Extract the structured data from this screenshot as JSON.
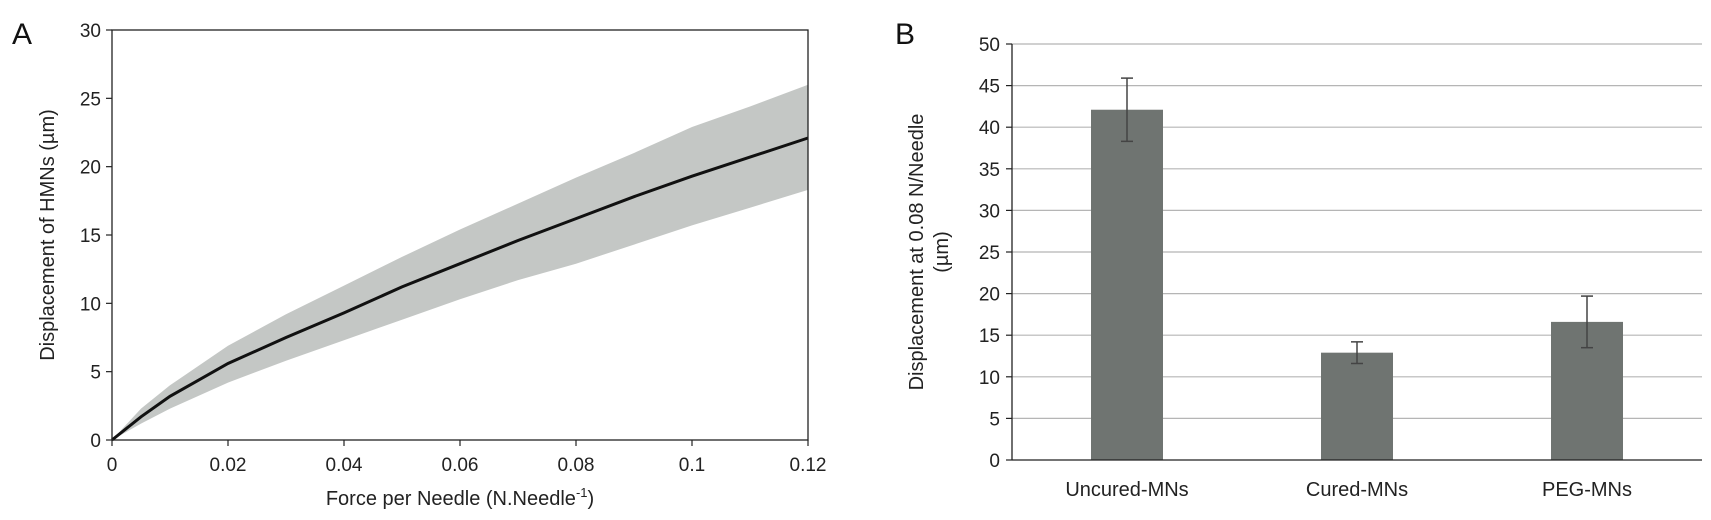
{
  "chart_data": [
    {
      "panel_label": "A",
      "type": "line",
      "xlabel": "Force per Needle (N.Needle",
      "xlabel_sup": "-1",
      "xlabel_suffix": ")",
      "ylabel": "Displacement of HMNs (µm)",
      "xlim": [
        0,
        0.12
      ],
      "ylim": [
        0,
        30
      ],
      "x_ticks": [
        0,
        0.02,
        0.04,
        0.06,
        0.08,
        0.1,
        0.12
      ],
      "x_tick_labels": [
        "0",
        "0.02",
        "0.04",
        "0.06",
        "0.08",
        "0.1",
        "0.12"
      ],
      "y_ticks": [
        0,
        5,
        10,
        15,
        20,
        25,
        30
      ],
      "y_tick_labels": [
        "0",
        "5",
        "10",
        "15",
        "20",
        "25",
        "30"
      ],
      "grid": false,
      "series": [
        {
          "x": [
            0,
            0.005,
            0.01,
            0.02,
            0.03,
            0.04,
            0.05,
            0.06,
            0.07,
            0.08,
            0.09,
            0.1,
            0.11,
            0.12
          ],
          "y": [
            0,
            1.7,
            3.2,
            5.6,
            7.5,
            9.3,
            11.2,
            12.9,
            14.6,
            16.2,
            17.8,
            19.3,
            20.7,
            22.1
          ],
          "lower": [
            0,
            1.2,
            2.3,
            4.2,
            5.8,
            7.3,
            8.8,
            10.3,
            11.7,
            12.9,
            14.3,
            15.7,
            17.0,
            18.3
          ],
          "upper": [
            0,
            2.3,
            4.0,
            6.9,
            9.2,
            11.3,
            13.4,
            15.4,
            17.3,
            19.2,
            21.0,
            22.9,
            24.4,
            26.0
          ],
          "line_color": "#111111",
          "band_color": "#c4c7c5"
        }
      ]
    },
    {
      "panel_label": "B",
      "type": "bar",
      "categories": [
        "Uncured-MNs",
        "Cured-MNs",
        "PEG-MNs"
      ],
      "values": [
        42.1,
        12.9,
        16.6
      ],
      "errors": [
        3.8,
        1.3,
        3.1
      ],
      "ylabel_line1": "Displacement at 0.08 N/Needle",
      "ylabel_line2": "(µm)",
      "ylim": [
        0,
        50
      ],
      "y_ticks": [
        0,
        5,
        10,
        15,
        20,
        25,
        30,
        35,
        40,
        45,
        50
      ],
      "y_tick_labels": [
        "0",
        "5",
        "10",
        "15",
        "20",
        "25",
        "30",
        "35",
        "40",
        "45",
        "50"
      ],
      "grid": true,
      "bar_color": "#6f7471",
      "grid_color": "#b5b5b5",
      "error_color": "#444444"
    }
  ]
}
